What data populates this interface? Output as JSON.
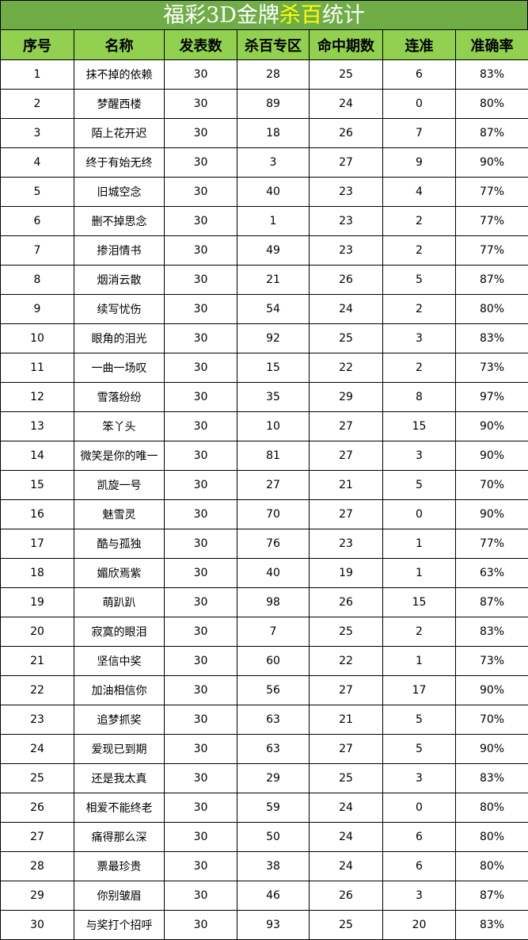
{
  "title": {
    "part1": "福彩3D金牌",
    "highlight": "杀百",
    "part2": "统计",
    "highlight_color": "#ffff00",
    "bg_color": "#70ad47"
  },
  "header_color": "#92d050",
  "columns": [
    "序号",
    "名称",
    "发表数",
    "杀百专区",
    "命中期数",
    "连准",
    "准确率"
  ],
  "rows": [
    [
      "1",
      "抹不掉的依赖",
      "30",
      "28",
      "25",
      "6",
      "83%"
    ],
    [
      "2",
      "梦醒西楼",
      "30",
      "89",
      "24",
      "0",
      "80%"
    ],
    [
      "3",
      "陌上花开迟",
      "30",
      "18",
      "26",
      "7",
      "87%"
    ],
    [
      "4",
      "终于有始无终",
      "30",
      "3",
      "27",
      "9",
      "90%"
    ],
    [
      "5",
      "旧城空念",
      "30",
      "40",
      "23",
      "4",
      "77%"
    ],
    [
      "6",
      "删不掉思念",
      "30",
      "1",
      "23",
      "2",
      "77%"
    ],
    [
      "7",
      "掺泪情书",
      "30",
      "49",
      "23",
      "2",
      "77%"
    ],
    [
      "8",
      "烟消云散",
      "30",
      "21",
      "26",
      "5",
      "87%"
    ],
    [
      "9",
      "续写忧伤",
      "30",
      "54",
      "24",
      "2",
      "80%"
    ],
    [
      "10",
      "眼角的泪光",
      "30",
      "92",
      "25",
      "3",
      "83%"
    ],
    [
      "11",
      "一曲一场叹",
      "30",
      "15",
      "22",
      "2",
      "73%"
    ],
    [
      "12",
      "雪落纷纷",
      "30",
      "35",
      "29",
      "8",
      "97%"
    ],
    [
      "13",
      "笨丫头",
      "30",
      "10",
      "27",
      "15",
      "90%"
    ],
    [
      "14",
      "微笑是你的唯一",
      "30",
      "81",
      "27",
      "3",
      "90%"
    ],
    [
      "15",
      "凯旋一号",
      "30",
      "27",
      "21",
      "5",
      "70%"
    ],
    [
      "16",
      "魅雪灵",
      "30",
      "70",
      "27",
      "0",
      "90%"
    ],
    [
      "17",
      "酷与孤独",
      "30",
      "76",
      "23",
      "1",
      "77%"
    ],
    [
      "18",
      "媚欣焉紫",
      "30",
      "40",
      "19",
      "1",
      "63%"
    ],
    [
      "19",
      "萌趴趴",
      "30",
      "98",
      "26",
      "15",
      "87%"
    ],
    [
      "20",
      "寂寞的眼泪",
      "30",
      "7",
      "25",
      "2",
      "83%"
    ],
    [
      "21",
      "坚信中奖",
      "30",
      "60",
      "22",
      "1",
      "73%"
    ],
    [
      "22",
      "加油相信你",
      "30",
      "56",
      "27",
      "17",
      "90%"
    ],
    [
      "23",
      "追梦抓奖",
      "30",
      "63",
      "21",
      "5",
      "70%"
    ],
    [
      "24",
      "爱现已到期",
      "30",
      "63",
      "27",
      "5",
      "90%"
    ],
    [
      "25",
      "还是我太真",
      "30",
      "29",
      "25",
      "3",
      "83%"
    ],
    [
      "26",
      "相爱不能终老",
      "30",
      "59",
      "24",
      "0",
      "80%"
    ],
    [
      "27",
      "痛得那么深",
      "30",
      "50",
      "24",
      "6",
      "80%"
    ],
    [
      "28",
      "票最珍贵",
      "30",
      "38",
      "24",
      "6",
      "80%"
    ],
    [
      "29",
      "你别皱眉",
      "30",
      "46",
      "26",
      "3",
      "87%"
    ],
    [
      "30",
      "与奖打个招呼",
      "30",
      "93",
      "25",
      "20",
      "83%"
    ]
  ]
}
